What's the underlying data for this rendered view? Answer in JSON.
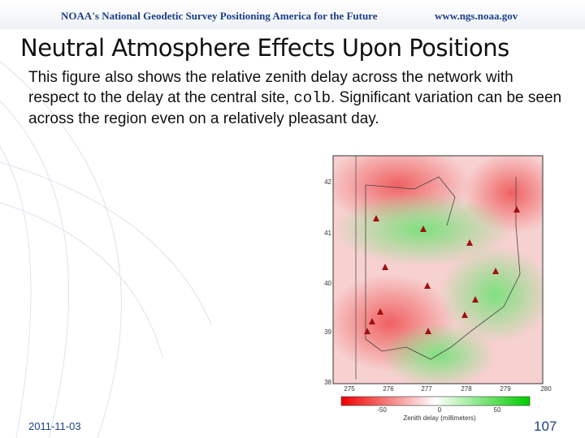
{
  "header": {
    "logo": "NOAA's National Geodetic Survey Positioning America for the Future",
    "url": "www.ngs.noaa.gov"
  },
  "title": "Neutral Atmosphere Effects Upon Positions",
  "body": [
    "This figure also shows the relative zenith delay across the network with respect to the delay at the central site, ",
    "colb",
    ". Significant variation can be seen across the region even on a relatively pleasant day."
  ],
  "figure": {
    "y_ticks": [
      "42",
      "41",
      "40",
      "39",
      "38"
    ],
    "x_ticks": [
      "275",
      "276",
      "277",
      "278",
      "279",
      "280"
    ],
    "colorbar_ticks": [
      "-50",
      "0",
      "50"
    ],
    "colorbar_label": "Zenith delay (millimeters)"
  },
  "footer": {
    "date": "2011-11-03",
    "page": "107"
  }
}
